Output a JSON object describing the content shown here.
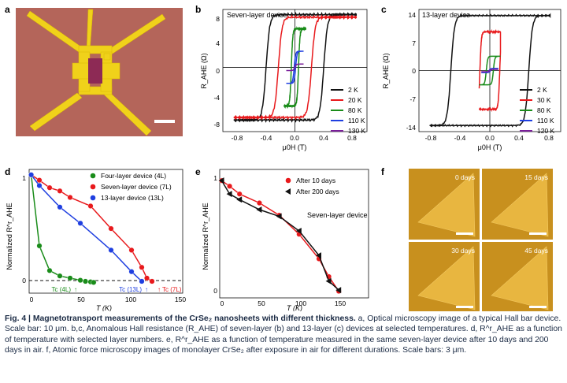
{
  "panels": {
    "a": {
      "letter": "a"
    },
    "b": {
      "letter": "b",
      "title": "Seven-layer device",
      "ylabel": "R_AHE (Ω)",
      "xlabel": "μ0H (T)",
      "yticks": [
        "8",
        "4",
        "0",
        "-4",
        "-8"
      ],
      "xticks": [
        "-0.8",
        "-0.4",
        "0.0",
        "0.4",
        "0.8"
      ],
      "legend": [
        "2 K",
        "20 K",
        "80 K",
        "110 K",
        "130 K"
      ]
    },
    "c": {
      "letter": "c",
      "title": "13-layer device",
      "ylabel": "R_AHE (Ω)",
      "xlabel": "μ0H (T)",
      "yticks": [
        "14",
        "7",
        "0",
        "-7",
        "-14"
      ],
      "xticks": [
        "-0.8",
        "-0.4",
        "0.0",
        "0.4",
        "0.8"
      ],
      "legend": [
        "2 K",
        "30 K",
        "80 K",
        "110 K",
        "120 K"
      ]
    },
    "d": {
      "letter": "d",
      "ylabel": "Normalized R^r_AHE",
      "xlabel": "T (K)",
      "yticks": [
        "1",
        "0"
      ],
      "xticks": [
        "0",
        "50",
        "100",
        "150"
      ],
      "legend": [
        "Four-layer device (4L)",
        "Seven-layer device (7L)",
        "13-layer device (13L)"
      ],
      "tc_labels": [
        "Tc (4L)",
        "Tc (13L)",
        "Tc (7L)"
      ]
    },
    "e": {
      "letter": "e",
      "ylabel": "Normalized R^r_AHE",
      "xlabel": "T (K)",
      "yticks": [
        "1",
        "0"
      ],
      "xticks": [
        "0",
        "50",
        "100",
        "150"
      ],
      "legend": [
        "After 10 days",
        "After 200 days"
      ],
      "annotation": "Seven-layer device"
    },
    "f": {
      "letter": "f",
      "labels": [
        "0 days",
        "15 days",
        "30 days",
        "45 days"
      ]
    }
  },
  "colors": {
    "black": "#111111",
    "red": "#e8191c",
    "green": "#1a8c1a",
    "blue": "#1f3fe0",
    "purple": "#7a1f9a",
    "substrate": "#b4655a",
    "gold": "#f0d21a",
    "afm_bg": "#c8901e",
    "afm_flake": "#e8b640",
    "caption": "#1a2a44"
  },
  "caption": {
    "bold": "Fig. 4 | Magnetotransport measurements of the CrSe₂ nanosheets with different thickness.",
    "text": " a, Optical microscopy image of a typical Hall bar device. Scale bar: 10 μm. b,c, Anomalous Hall resistance (R_AHE) of seven-layer (b) and 13-layer (c) devices at selected temperatures. d, R^r_AHE as a function of temperature with selected layer numbers. e, R^r_AHE as a function of temperature measured in the same seven-layer device after 10 days and 200 days in air. f, Atomic force microscopy images of monolayer CrSe₂ after exposure in air for different durations. Scale bars: 3 μm."
  },
  "chart_data": [
    {
      "panel": "b",
      "type": "line",
      "xlim": [
        -1.0,
        1.0
      ],
      "ylim": [
        -10,
        9
      ],
      "series": [
        {
          "name": "2 K",
          "color": "#111111",
          "coercive": 0.4,
          "sat": 8.2
        },
        {
          "name": "20 K",
          "color": "#e8191c",
          "coercive": 0.23,
          "sat": 7.8
        },
        {
          "name": "80 K",
          "color": "#1a8c1a",
          "coercive": 0.05,
          "sat": 6.0
        },
        {
          "name": "110 K",
          "color": "#1f3fe0",
          "coercive": 0.01,
          "sat": 2.5
        },
        {
          "name": "130 K",
          "color": "#7a1f9a",
          "coercive": 0.0,
          "sat": 0.5
        }
      ]
    },
    {
      "panel": "c",
      "type": "line",
      "xlim": [
        -1.0,
        1.0
      ],
      "ylim": [
        -15,
        15
      ],
      "series": [
        {
          "name": "2 K",
          "color": "#111111",
          "coercive": 0.55,
          "sat": 13.5
        },
        {
          "name": "30 K",
          "color": "#e8191c",
          "coercive": 0.14,
          "sat": 9.5
        },
        {
          "name": "80 K",
          "color": "#1a8c1a",
          "coercive": 0.05,
          "sat": 3.5
        },
        {
          "name": "110 K",
          "color": "#1f3fe0",
          "coercive": 0.01,
          "sat": 0.5
        },
        {
          "name": "120 K",
          "color": "#7a1f9a",
          "coercive": 0.0,
          "sat": 0.3
        }
      ]
    },
    {
      "panel": "d",
      "type": "line",
      "xlim": [
        0,
        150
      ],
      "ylim": [
        -0.1,
        1.05
      ],
      "series": [
        {
          "name": "Four-layer device (4L)",
          "color": "#1a8c1a",
          "x": [
            2,
            10,
            20,
            30,
            40,
            50,
            55,
            60,
            63
          ],
          "y": [
            1,
            0.34,
            0.11,
            0.06,
            0.04,
            0.02,
            0.01,
            0.005,
            0.0
          ]
        },
        {
          "name": "Seven-layer device (7L)",
          "color": "#e8191c",
          "x": [
            2,
            10,
            20,
            30,
            40,
            60,
            80,
            100,
            110,
            115,
            120
          ],
          "y": [
            1,
            0.95,
            0.88,
            0.85,
            0.79,
            0.71,
            0.5,
            0.3,
            0.14,
            0.04,
            0.01
          ]
        },
        {
          "name": "13-layer device (13L)",
          "color": "#1f3fe0",
          "x": [
            2,
            10,
            30,
            50,
            80,
            100,
            110
          ],
          "y": [
            1,
            0.9,
            0.7,
            0.55,
            0.3,
            0.1,
            0.01
          ]
        }
      ]
    },
    {
      "panel": "e",
      "type": "line",
      "xlim": [
        0,
        150
      ],
      "ylim": [
        -0.05,
        1.1
      ],
      "series": [
        {
          "name": "After 10 days",
          "color": "#e8191c",
          "x": [
            2,
            10,
            20,
            40,
            60,
            80,
            100,
            110,
            120
          ],
          "y": [
            1,
            0.95,
            0.88,
            0.8,
            0.69,
            0.52,
            0.3,
            0.14,
            0.01
          ]
        },
        {
          "name": "After 200 days",
          "color": "#111111",
          "x": [
            2,
            10,
            20,
            40,
            60,
            80,
            100,
            110,
            120
          ],
          "y": [
            1,
            0.88,
            0.83,
            0.74,
            0.68,
            0.55,
            0.33,
            0.1,
            0.02
          ]
        }
      ]
    }
  ]
}
